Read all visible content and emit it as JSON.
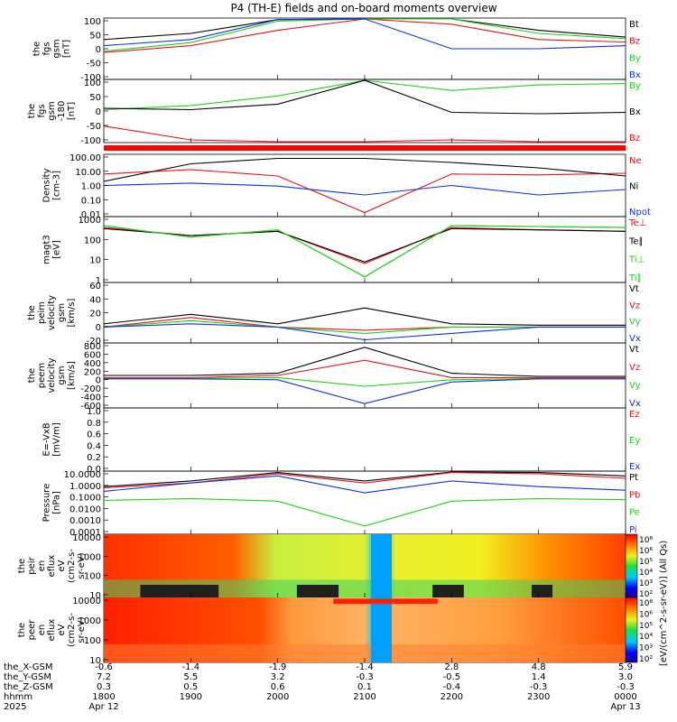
{
  "title": "P4 (TH-E) fields and on-board moments overview",
  "colors": {
    "black": "#000000",
    "red": "#e8101a",
    "green": "#20d020",
    "blue": "#1030e0",
    "ion_bar": "#ff0000"
  },
  "panels": [
    {
      "id": "fgs-gsm",
      "ylabel": [
        "the",
        "fgs",
        "gsm",
        "[nT]"
      ],
      "ticks": [
        "100",
        "50",
        "0",
        "-50",
        "-100"
      ],
      "legend": [
        {
          "text": "Bt",
          "color": "#000000"
        },
        {
          "text": "Bz",
          "color": "#e8101a"
        },
        {
          "text": "By",
          "color": "#20d020"
        },
        {
          "text": "Bx",
          "color": "#1030e0"
        }
      ]
    },
    {
      "id": "fgs-gsm-180",
      "ylabel": [
        "the",
        "fgs",
        "gsm",
        "-180",
        "[nT]"
      ],
      "ticks": [
        "100",
        "50",
        "0",
        "-50",
        "-100"
      ],
      "legend": [
        {
          "text": "By",
          "color": "#20d020"
        },
        {
          "text": "Bx",
          "color": "#000000"
        },
        {
          "text": "Bz",
          "color": "#e8101a"
        }
      ]
    },
    {
      "id": "density",
      "ylabel": [
        "Density",
        "[cm-3]"
      ],
      "ticks": [
        "100.00",
        "10.00",
        "1.00",
        "0.10",
        "0.01"
      ],
      "legend": [
        {
          "text": "Ne",
          "color": "#e8101a"
        },
        {
          "text": "Ni",
          "color": "#000000"
        },
        {
          "text": "Npot",
          "color": "#1030e0"
        }
      ]
    },
    {
      "id": "temperature",
      "ylabel": [
        "magt3",
        "[eV]"
      ],
      "ticks": [
        "1000",
        "100",
        "10",
        "1"
      ],
      "legend": [
        {
          "text": "Te⊥",
          "color": "#e8101a"
        },
        {
          "text": "Te∥",
          "color": "#000000"
        },
        {
          "text": "Ti⊥",
          "color": "#20d020"
        },
        {
          "text": "Ti∥",
          "color": "#20d020"
        }
      ]
    },
    {
      "id": "peim-velocity",
      "ylabel": [
        "the",
        "peim",
        "velocity",
        "gsm",
        "[km/s]"
      ],
      "ticks": [
        "60",
        "40",
        "20",
        "0",
        "-20"
      ],
      "legend": [
        {
          "text": "Vt",
          "color": "#000000"
        },
        {
          "text": "Vz",
          "color": "#e8101a"
        },
        {
          "text": "Vy",
          "color": "#20d020"
        },
        {
          "text": "Vx",
          "color": "#1030e0"
        }
      ]
    },
    {
      "id": "peem-velocity",
      "ylabel": [
        "the",
        "peem",
        "velocity",
        "gsm",
        "[km/s]"
      ],
      "ticks": [
        "800",
        "600",
        "400",
        "200",
        "0",
        "-200",
        "-400",
        "-600"
      ],
      "legend": [
        {
          "text": "Vt",
          "color": "#000000"
        },
        {
          "text": "Vz",
          "color": "#e8101a"
        },
        {
          "text": "Vy",
          "color": "#20d020"
        },
        {
          "text": "Vx",
          "color": "#1030e0"
        }
      ]
    },
    {
      "id": "e-field",
      "ylabel": [
        "E=-VxB",
        "[mV/m]"
      ],
      "ticks": [
        "1.0",
        "0.8",
        "0.6",
        "0.4",
        "0.2",
        "0.0"
      ],
      "legend": [
        {
          "text": "Ez",
          "color": "#e8101a"
        },
        {
          "text": "Ey",
          "color": "#20d020"
        },
        {
          "text": "Ex",
          "color": "#1030e0"
        }
      ]
    },
    {
      "id": "pressure",
      "ylabel": [
        "Pressure",
        "[nPa]"
      ],
      "ticks": [
        "10.0000",
        "1.0000",
        "0.1000",
        "0.0100",
        "0.0010",
        "0.0001"
      ],
      "legend": [
        {
          "text": "Pt",
          "color": "#000000"
        },
        {
          "text": "Pb",
          "color": "#e8101a"
        },
        {
          "text": "Pe",
          "color": "#20d020"
        },
        {
          "text": "Pi",
          "color": "#1030e0"
        }
      ]
    },
    {
      "id": "peir-spectrogram",
      "ylabel": [
        "the",
        "peir",
        "en",
        "eflux",
        "eV",
        "(cm2-s-",
        "sr-eV)"
      ],
      "ticks": [
        "10000",
        "1000",
        "100",
        "10"
      ],
      "legend": []
    },
    {
      "id": "peer-spectrogram",
      "ylabel": [
        "the",
        "peer",
        "en",
        "eflux",
        "eV",
        "(cm2-s-",
        "sr-eV)"
      ],
      "ticks": [
        "10000",
        "1000",
        "100",
        "10"
      ],
      "legend": []
    }
  ],
  "colorbar": {
    "label": "[eV/(cm^2-s-sr-eV)] (All Qs)",
    "upper_ticks": [
      "10⁸",
      "10⁶",
      "10⁵",
      "10⁴",
      "10³",
      "10²"
    ],
    "lower_ticks": [
      "10⁸",
      "10⁶",
      "10⁵",
      "10⁴",
      "10³",
      "10²"
    ]
  },
  "ion_bar_label": "",
  "x_axis": {
    "row_labels": [
      "the_X-GSM",
      "the_Y-GSM",
      "the_Z-GSM",
      "hhmm",
      "2025"
    ],
    "columns": [
      [
        "-0.6",
        "7.2",
        "0.3",
        "1800",
        "Apr 12"
      ],
      [
        "-1.4",
        "5.5",
        "0.5",
        "1900",
        ""
      ],
      [
        "-1.9",
        "3.2",
        "0.6",
        "2000",
        ""
      ],
      [
        "-1.4",
        "-0.3",
        "0.1",
        "2100",
        ""
      ],
      [
        "2.8",
        "-0.5",
        "-0.4",
        "2200",
        ""
      ],
      [
        "4.8",
        "1.4",
        "-0.3",
        "2300",
        ""
      ],
      [
        "5.9",
        "3.0",
        "-0.3",
        "0000",
        "Apr 13"
      ]
    ]
  },
  "chart_data": [
    {
      "type": "line",
      "title": "P4 (TH-E) fields and on-board moments overview",
      "panel": "the fgs gsm [nT]",
      "x": [
        "1800",
        "1900",
        "2000",
        "2100",
        "2200",
        "2300",
        "0000"
      ],
      "ylim": [
        -100,
        100
      ],
      "series": [
        {
          "name": "Bt",
          "values": [
            30,
            50,
            95,
            100,
            100,
            60,
            38
          ]
        },
        {
          "name": "Bz",
          "values": [
            -12,
            10,
            60,
            100,
            80,
            30,
            22
          ]
        },
        {
          "name": "By",
          "values": [
            -8,
            20,
            90,
            100,
            100,
            50,
            33
          ]
        },
        {
          "name": "Bx",
          "values": [
            10,
            30,
            95,
            100,
            0,
            0,
            10
          ]
        }
      ]
    },
    {
      "type": "line",
      "panel": "the fgs gsm -180 [nT]",
      "x": [
        "1800",
        "1900",
        "2000",
        "2100",
        "2200",
        "2300",
        "0000"
      ],
      "ylim": [
        -130,
        100
      ],
      "series": [
        {
          "name": "By",
          "values": [
            -10,
            5,
            40,
            100,
            60,
            80,
            85
          ]
        },
        {
          "name": "Bx",
          "values": [
            -5,
            -10,
            10,
            100,
            -20,
            -25,
            -20
          ]
        },
        {
          "name": "Bz",
          "values": [
            -70,
            -120,
            -130,
            -130,
            -120,
            -130,
            -130
          ]
        }
      ]
    },
    {
      "type": "line",
      "panel": "Density [cm-3]",
      "x": [
        "1800",
        "1900",
        "2000",
        "2100",
        "2200",
        "2300",
        "0000"
      ],
      "ylim": [
        0.005,
        200
      ],
      "series": [
        {
          "name": "Ne",
          "values": [
            7,
            15,
            5,
            0.01,
            7,
            6,
            8
          ]
        },
        {
          "name": "Ni",
          "values": [
            2,
            40,
            100,
            100,
            50,
            20,
            5
          ]
        },
        {
          "name": "Npot",
          "values": [
            1,
            1.5,
            0.9,
            0.2,
            1.0,
            0.2,
            0.5
          ]
        }
      ]
    },
    {
      "type": "line",
      "panel": "magt3 [eV]",
      "x": [
        "1800",
        "1900",
        "2000",
        "2100",
        "2200",
        "2300",
        "0000"
      ],
      "ylim": [
        1,
        3000
      ],
      "series": [
        {
          "name": "Te⊥",
          "values": [
            800,
            300,
            500,
            10,
            800,
            600,
            500
          ]
        },
        {
          "name": "Te∥",
          "values": [
            700,
            300,
            500,
            12,
            700,
            600,
            500
          ]
        },
        {
          "name": "Ti⊥",
          "values": [
            1000,
            250,
            600,
            2,
            1000,
            900,
            800
          ]
        },
        {
          "name": "Ti∥",
          "values": [
            1000,
            250,
            600,
            2,
            1000,
            900,
            800
          ]
        }
      ]
    },
    {
      "type": "line",
      "panel": "the peim velocity gsm [km/s]",
      "x": [
        "1800",
        "1900",
        "2000",
        "2100",
        "2200",
        "2300",
        "0000"
      ],
      "ylim": [
        -25,
        70
      ],
      "series": [
        {
          "name": "Vt",
          "values": [
            5,
            20,
            5,
            30,
            5,
            3,
            3
          ]
        },
        {
          "name": "Vz",
          "values": [
            0,
            15,
            0,
            -5,
            0,
            0,
            0
          ]
        },
        {
          "name": "Vy",
          "values": [
            0,
            10,
            0,
            -10,
            0,
            0,
            0
          ]
        },
        {
          "name": "Vx",
          "values": [
            0,
            5,
            0,
            -20,
            -10,
            0,
            0
          ]
        }
      ]
    },
    {
      "type": "line",
      "panel": "the peem velocity gsm [km/s]",
      "x": [
        "1800",
        "1900",
        "2000",
        "2100",
        "2200",
        "2300",
        "0000"
      ],
      "ylim": [
        -700,
        800
      ],
      "series": [
        {
          "name": "Vt",
          "values": [
            50,
            50,
            100,
            700,
            100,
            30,
            30
          ]
        },
        {
          "name": "Vz",
          "values": [
            0,
            0,
            50,
            400,
            0,
            0,
            0
          ]
        },
        {
          "name": "Vy",
          "values": [
            -20,
            -20,
            0,
            -200,
            -50,
            -20,
            -20
          ]
        },
        {
          "name": "Vx",
          "values": [
            -30,
            -30,
            -50,
            -600,
            -100,
            -30,
            -30
          ]
        }
      ]
    },
    {
      "type": "line",
      "panel": "E=-VxB [mV/m]",
      "x": [
        "1800",
        "1900",
        "2000",
        "2100",
        "2200",
        "2300",
        "0000"
      ],
      "ylim": [
        0,
        1
      ],
      "series": []
    },
    {
      "type": "line",
      "panel": "Pressure [nPa]",
      "x": [
        "1800",
        "1900",
        "2000",
        "2100",
        "2200",
        "2300",
        "0000"
      ],
      "ylim": [
        0.0001,
        20
      ],
      "series": [
        {
          "name": "Pt",
          "values": [
            1,
            3,
            15,
            3,
            20,
            15,
            8
          ]
        },
        {
          "name": "Pb",
          "values": [
            0.8,
            2,
            12,
            2,
            15,
            12,
            5
          ]
        },
        {
          "name": "Pe",
          "values": [
            0.07,
            0.1,
            0.06,
            0.0005,
            0.06,
            0.1,
            0.08
          ]
        },
        {
          "name": "Pi",
          "values": [
            0.4,
            2,
            8,
            0.3,
            3,
            1,
            0.5
          ]
        }
      ]
    },
    {
      "type": "heatmap",
      "panel": "the peir en eflux eV/(cm2-s-sr-eV)",
      "x": [
        "1800",
        "1900",
        "2000",
        "2100",
        "2200",
        "2300",
        "0000"
      ],
      "y_ticks": [
        "10000",
        "1000",
        "100",
        "10"
      ]
    },
    {
      "type": "heatmap",
      "panel": "the peer en eflux eV/(cm2-s-sr-eV)",
      "x": [
        "1800",
        "1900",
        "2000",
        "2100",
        "2200",
        "2300",
        "0000"
      ],
      "y_ticks": [
        "10000",
        "1000",
        "100",
        "10"
      ]
    }
  ]
}
